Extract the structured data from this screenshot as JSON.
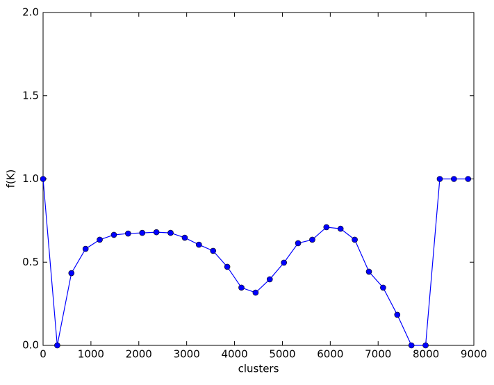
{
  "chart_data": {
    "type": "line",
    "xlabel": "clusters",
    "ylabel": "f(K)",
    "x": [
      0,
      296,
      592,
      888,
      1184,
      1480,
      1776,
      2072,
      2368,
      2664,
      2960,
      3256,
      3552,
      3848,
      4144,
      4440,
      4736,
      5032,
      5328,
      5624,
      5920,
      6216,
      6512,
      6808,
      7104,
      7400,
      7696,
      7992,
      8288,
      8584,
      8880
    ],
    "series": [
      {
        "color": "#0000ff",
        "values": [
          1.0,
          0,
          0.434,
          0.58,
          0.635,
          0.664,
          0.672,
          0.676,
          0.68,
          0.676,
          0.647,
          0.605,
          0.568,
          0.472,
          0.347,
          0.317,
          0.397,
          0.497,
          0.614,
          0.635,
          0.71,
          0.701,
          0.635,
          0.443,
          0.347,
          0.184,
          0,
          0,
          1.0,
          1.0,
          1.0
        ]
      }
    ],
    "xlim": [
      0,
      9000
    ],
    "xticks": [
      0,
      1000,
      2000,
      3000,
      4000,
      5000,
      6000,
      7000,
      8000,
      9000
    ],
    "ylim": [
      0,
      2
    ],
    "yticks": [
      {
        "value": 0,
        "label": "0.0"
      },
      0.5,
      {
        "value": 1,
        "label": "1.0"
      },
      1.5,
      {
        "value": 2,
        "label": "2.0"
      }
    ],
    "grid": false,
    "marker": "o"
  }
}
